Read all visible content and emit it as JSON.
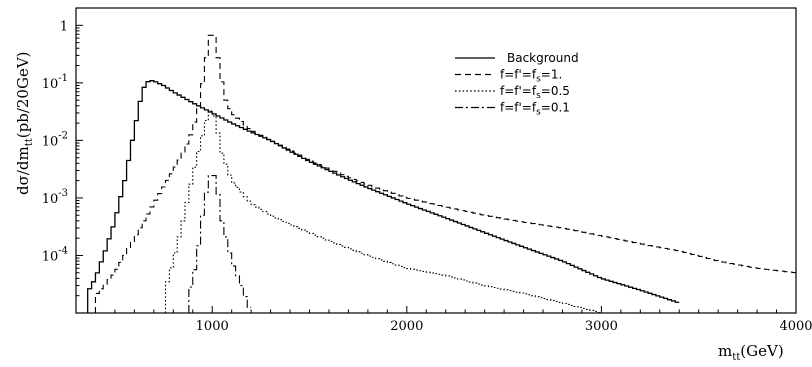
{
  "chart_data": {
    "type": "line",
    "style": "step-histogram",
    "title": "",
    "xlabel": "m_tt(GeV)",
    "ylabel": "dσ/dm_tt(pb/20GeV)",
    "x_scale": "linear",
    "y_scale": "log",
    "xlim": [
      300,
      4000
    ],
    "ylim": [
      1e-05,
      2
    ],
    "bin_width": 20,
    "x_ticks": [
      1000,
      2000,
      3000,
      4000
    ],
    "x_tick_labels": [
      "1000",
      "2000",
      "3000",
      "4000"
    ],
    "y_ticks": [
      1,
      0.1,
      0.01,
      0.001,
      0.0001
    ],
    "y_tick_labels": [
      {
        "base": "1",
        "exp": ""
      },
      {
        "base": "10",
        "exp": "-1"
      },
      {
        "base": "10",
        "exp": "-2"
      },
      {
        "base": "10",
        "exp": "-3"
      },
      {
        "base": "10",
        "exp": "-4"
      }
    ],
    "grid": false,
    "legend_position": "top-right",
    "series": [
      {
        "name": "Background",
        "dash": "solid",
        "color": "#000000",
        "points": [
          [
            350,
            2e-05
          ],
          [
            400,
            4e-05
          ],
          [
            450,
            0.00012
          ],
          [
            500,
            0.0004
          ],
          [
            550,
            0.002
          ],
          [
            600,
            0.015
          ],
          [
            640,
            0.07
          ],
          [
            660,
            0.1
          ],
          [
            680,
            0.11
          ],
          [
            700,
            0.108
          ],
          [
            750,
            0.09
          ],
          [
            800,
            0.07
          ],
          [
            900,
            0.045
          ],
          [
            1000,
            0.03
          ],
          [
            1100,
            0.02
          ],
          [
            1200,
            0.014
          ],
          [
            1300,
            0.01
          ],
          [
            1400,
            0.0065
          ],
          [
            1500,
            0.0043
          ],
          [
            1600,
            0.003
          ],
          [
            1700,
            0.0021
          ],
          [
            1800,
            0.0015
          ],
          [
            1900,
            0.0011
          ],
          [
            2000,
            0.0008
          ],
          [
            2200,
            0.00045
          ],
          [
            2400,
            0.00025
          ],
          [
            2600,
            0.00014
          ],
          [
            2800,
            8e-05
          ],
          [
            3000,
            4e-05
          ],
          [
            3200,
            2.5e-05
          ],
          [
            3400,
            1.5e-05
          ]
        ]
      },
      {
        "name": "f=f'=f_s=1.",
        "dash": "dashed",
        "color": "#000000",
        "points": [
          [
            400,
            2e-05
          ],
          [
            500,
            5e-05
          ],
          [
            600,
            0.0002
          ],
          [
            700,
            0.0008
          ],
          [
            800,
            0.003
          ],
          [
            850,
            0.006
          ],
          [
            900,
            0.015
          ],
          [
            930,
            0.04
          ],
          [
            960,
            0.15
          ],
          [
            980,
            0.5
          ],
          [
            1000,
            0.9
          ],
          [
            1020,
            0.5
          ],
          [
            1040,
            0.15
          ],
          [
            1070,
            0.05
          ],
          [
            1100,
            0.03
          ],
          [
            1200,
            0.015
          ],
          [
            1300,
            0.01
          ],
          [
            1400,
            0.0068
          ],
          [
            1500,
            0.0045
          ],
          [
            1600,
            0.0032
          ],
          [
            1700,
            0.0023
          ],
          [
            1800,
            0.0017
          ],
          [
            1900,
            0.0013
          ],
          [
            2000,
            0.001
          ],
          [
            2200,
            0.0007
          ],
          [
            2400,
            0.0005
          ],
          [
            2600,
            0.00038
          ],
          [
            2800,
            0.0003
          ],
          [
            3000,
            0.00022
          ],
          [
            3200,
            0.00016
          ],
          [
            3400,
            0.00012
          ],
          [
            3600,
            8e-05
          ],
          [
            3800,
            6e-05
          ],
          [
            4000,
            5e-05
          ]
        ]
      },
      {
        "name": "f=f'=f_s=0.5",
        "dash": "dotted",
        "color": "#000000",
        "points": [
          [
            750,
            2e-05
          ],
          [
            800,
            8e-05
          ],
          [
            850,
            0.0004
          ],
          [
            900,
            0.0025
          ],
          [
            950,
            0.012
          ],
          [
            980,
            0.03
          ],
          [
            1000,
            0.035
          ],
          [
            1020,
            0.02
          ],
          [
            1050,
            0.006
          ],
          [
            1100,
            0.002
          ],
          [
            1200,
            0.0008
          ],
          [
            1300,
            0.0005
          ],
          [
            1400,
            0.00035
          ],
          [
            1500,
            0.00025
          ],
          [
            1600,
            0.00018
          ],
          [
            1800,
            0.0001
          ],
          [
            2000,
            6e-05
          ],
          [
            2200,
            4.5e-05
          ],
          [
            2400,
            3e-05
          ],
          [
            2600,
            2.2e-05
          ],
          [
            2800,
            1.5e-05
          ],
          [
            3000,
            1e-05
          ]
        ]
      },
      {
        "name": "f=f'=f_s=0.1",
        "dash": "dash-dot",
        "color": "#000000",
        "points": [
          [
            880,
            2e-05
          ],
          [
            920,
            8e-05
          ],
          [
            950,
            0.0005
          ],
          [
            980,
            0.002
          ],
          [
            1000,
            0.003
          ],
          [
            1020,
            0.002
          ],
          [
            1050,
            0.0004
          ],
          [
            1100,
            8e-05
          ],
          [
            1150,
            3e-05
          ],
          [
            1200,
            1e-05
          ]
        ]
      }
    ]
  }
}
